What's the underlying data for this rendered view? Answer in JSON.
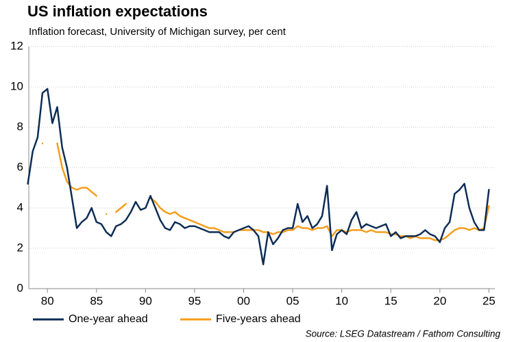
{
  "chart_data": {
    "type": "line",
    "title": "US inflation expectations",
    "subtitle": "Inflation forecast, University of Michigan survey, per cent",
    "source": "Source: LSEG Datastream / Fathom Consulting",
    "x": [
      1978.0,
      1978.5,
      1979.0,
      1979.5,
      1980.0,
      1980.5,
      1981.0,
      1981.5,
      1982.0,
      1982.5,
      1983.0,
      1983.5,
      1984.0,
      1984.5,
      1985.0,
      1985.5,
      1986.0,
      1986.5,
      1987.0,
      1987.5,
      1988.0,
      1988.5,
      1989.0,
      1989.5,
      1990.0,
      1990.5,
      1991.0,
      1991.5,
      1992.0,
      1992.5,
      1993.0,
      1993.5,
      1994.0,
      1994.5,
      1995.0,
      1995.5,
      1996.0,
      1996.5,
      1997.0,
      1997.5,
      1998.0,
      1998.5,
      1999.0,
      1999.5,
      2000.0,
      2000.5,
      2001.0,
      2001.5,
      2002.0,
      2002.5,
      2003.0,
      2003.5,
      2004.0,
      2004.5,
      2005.0,
      2005.5,
      2006.0,
      2006.5,
      2007.0,
      2007.5,
      2008.0,
      2008.5,
      2009.0,
      2009.5,
      2010.0,
      2010.5,
      2011.0,
      2011.5,
      2012.0,
      2012.5,
      2013.0,
      2013.5,
      2014.0,
      2014.5,
      2015.0,
      2015.5,
      2016.0,
      2016.5,
      2017.0,
      2017.5,
      2018.0,
      2018.5,
      2019.0,
      2019.5,
      2020.0,
      2020.5,
      2021.0,
      2021.5,
      2022.0,
      2022.5,
      2023.0,
      2023.5,
      2024.0,
      2024.5,
      2025.0
    ],
    "series": [
      {
        "name": "One-year ahead",
        "color": "#0c2c55",
        "values": [
          5.2,
          6.8,
          7.5,
          9.7,
          9.9,
          8.2,
          9.0,
          7.0,
          6.0,
          4.5,
          3.0,
          3.3,
          3.5,
          4.0,
          3.3,
          3.2,
          2.8,
          2.6,
          3.1,
          3.2,
          3.4,
          3.8,
          4.3,
          3.9,
          4.0,
          4.6,
          4.0,
          3.4,
          3.0,
          2.9,
          3.3,
          3.2,
          3.0,
          3.1,
          3.1,
          3.0,
          2.9,
          2.8,
          2.8,
          2.8,
          2.6,
          2.5,
          2.8,
          2.9,
          3.0,
          3.1,
          2.9,
          2.6,
          1.2,
          2.8,
          2.2,
          2.5,
          2.9,
          3.0,
          3.0,
          4.2,
          3.3,
          3.6,
          3.0,
          3.2,
          3.6,
          5.1,
          1.9,
          2.7,
          2.9,
          2.7,
          3.4,
          3.8,
          3.0,
          3.2,
          3.1,
          3.0,
          3.1,
          3.2,
          2.6,
          2.8,
          2.5,
          2.6,
          2.6,
          2.6,
          2.7,
          2.9,
          2.7,
          2.6,
          2.3,
          3.0,
          3.3,
          4.7,
          4.9,
          5.2,
          4.0,
          3.3,
          2.9,
          2.9,
          4.9
        ]
      },
      {
        "name": "Five-years ahead",
        "color": "#f59c1a",
        "values": [
          null,
          null,
          null,
          7.2,
          null,
          null,
          7.2,
          6.0,
          5.3,
          5.0,
          4.9,
          5.0,
          5.0,
          4.8,
          4.6,
          null,
          3.7,
          null,
          3.8,
          4.0,
          4.2,
          null,
          null,
          null,
          null,
          4.5,
          4.3,
          4.0,
          3.8,
          3.7,
          3.8,
          3.6,
          3.5,
          3.4,
          3.3,
          3.2,
          3.1,
          3.0,
          3.0,
          2.9,
          2.8,
          2.8,
          2.8,
          2.9,
          2.9,
          2.9,
          2.9,
          2.9,
          2.8,
          2.8,
          2.7,
          2.8,
          2.8,
          2.9,
          2.9,
          3.1,
          3.0,
          3.0,
          2.9,
          3.0,
          3.0,
          3.1,
          2.6,
          2.9,
          2.9,
          2.8,
          2.9,
          2.9,
          2.9,
          2.8,
          2.9,
          2.8,
          2.8,
          2.8,
          2.7,
          2.7,
          2.6,
          2.6,
          2.5,
          2.6,
          2.5,
          2.5,
          2.5,
          2.4,
          2.4,
          2.5,
          2.7,
          2.9,
          3.0,
          3.0,
          2.9,
          3.0,
          2.9,
          3.0,
          4.1
        ]
      }
    ],
    "xlim": [
      1978.1,
      2025.6
    ],
    "xticks": [
      {
        "value": 1980,
        "label": "80"
      },
      {
        "value": 1985,
        "label": "85"
      },
      {
        "value": 1990,
        "label": "90"
      },
      {
        "value": 1995,
        "label": "95"
      },
      {
        "value": 2000,
        "label": "00"
      },
      {
        "value": 2005,
        "label": "05"
      },
      {
        "value": 2010,
        "label": "10"
      },
      {
        "value": 2015,
        "label": "15"
      },
      {
        "value": 2020,
        "label": "20"
      },
      {
        "value": 2025,
        "label": "25"
      }
    ],
    "ylim": [
      0,
      12
    ],
    "yticks": [
      0,
      2,
      4,
      6,
      8,
      10,
      12
    ],
    "grid": true
  }
}
